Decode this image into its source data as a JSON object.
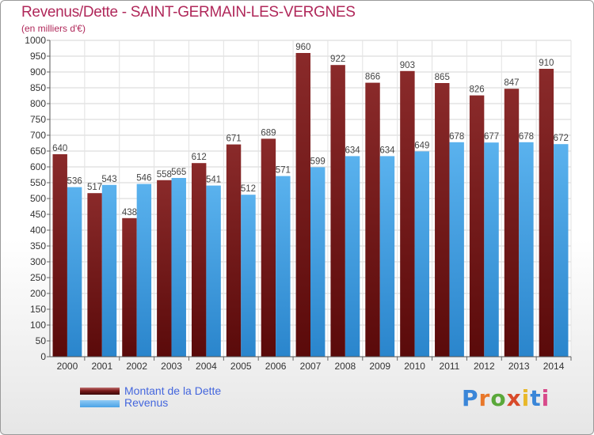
{
  "header": {
    "title": "Revenus/Dette - SAINT-GERMAIN-LES-VERGNES",
    "subtitle": "(en milliers d'€)"
  },
  "legend": [
    {
      "label": "Montant de la Dette",
      "color": "#7a1a1a"
    },
    {
      "label": "Revenus",
      "color": "#4aa3e6"
    }
  ],
  "logo": {
    "text": "Proxiti",
    "colors": [
      "#3a86d8",
      "#e8772a",
      "#5aa83a",
      "#d84a2a",
      "#e8b82a",
      "#3a86d8",
      "#d84a8a"
    ]
  },
  "chart_data": {
    "type": "bar",
    "title": "Revenus/Dette - SAINT-GERMAIN-LES-VERGNES",
    "subtitle": "(en milliers d'€)",
    "categories": [
      "2000",
      "2001",
      "2002",
      "2003",
      "2004",
      "2005",
      "2006",
      "2007",
      "2008",
      "2009",
      "2010",
      "2011",
      "2012",
      "2013",
      "2014"
    ],
    "series": [
      {
        "name": "Montant de la Dette",
        "color": "#7a1a1a",
        "values": [
          640,
          517,
          438,
          558,
          612,
          671,
          689,
          960,
          922,
          866,
          903,
          865,
          826,
          847,
          910
        ]
      },
      {
        "name": "Revenus",
        "color": "#4aa3e6",
        "values": [
          536,
          543,
          546,
          565,
          541,
          512,
          571,
          599,
          634,
          634,
          649,
          678,
          677,
          678,
          672
        ]
      }
    ],
    "ylim": [
      0,
      1000
    ],
    "ytick_step": 50,
    "grid": true,
    "legend_position": "bottom-left"
  }
}
